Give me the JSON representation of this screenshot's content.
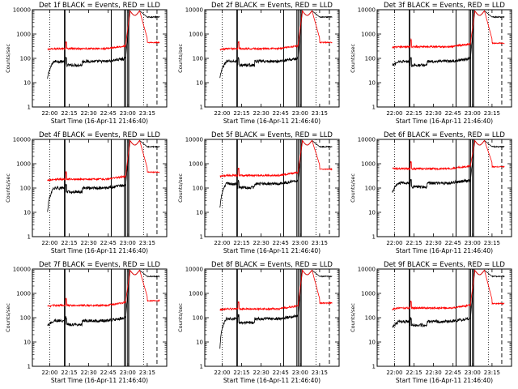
{
  "chart_data": [
    {
      "type": "line",
      "title": "Det 1f BLACK = Events, RED = LLD",
      "xlabel": "Start Time (16-Apr-11 21:46:40)",
      "ylabel": "Counts/sec",
      "yscale": "log",
      "ylim": [
        1,
        10000
      ],
      "x_ticks": [
        "22:00",
        "22:15",
        "22:30",
        "22:45",
        "23:00",
        "23:15"
      ],
      "y_ticks": [
        "1",
        "10",
        "100",
        "1000",
        "10000"
      ],
      "series": [
        {
          "color": "#000000",
          "kind": "events",
          "base": 75,
          "start": 14,
          "end": 6000
        },
        {
          "color": "#ff0000",
          "kind": "lld",
          "base": 250,
          "start": 230,
          "end": 450
        }
      ]
    },
    {
      "type": "line",
      "title": "Det 2f BLACK = Events, RED = LLD",
      "xlabel": "Start Time (16-Apr-11 21:46:40)",
      "ylabel": "Counts/sec",
      "yscale": "log",
      "ylim": [
        1,
        10000
      ],
      "x_ticks": [
        "22:00",
        "22:15",
        "22:30",
        "22:45",
        "23:00",
        "23:15"
      ],
      "y_ticks": [
        "1",
        "10",
        "100",
        "1000",
        "10000"
      ],
      "series": [
        {
          "color": "#000000",
          "kind": "events",
          "base": 75,
          "start": 15,
          "end": 6000
        },
        {
          "color": "#ff0000",
          "kind": "lld",
          "base": 250,
          "start": 230,
          "end": 450
        }
      ]
    },
    {
      "type": "line",
      "title": "Det 3f BLACK = Events, RED = LLD",
      "xlabel": "Start Time (16-Apr-11 21:46:40)",
      "ylabel": "Counts/sec",
      "yscale": "log",
      "ylim": [
        1,
        10000
      ],
      "x_ticks": [
        "22:00",
        "22:15",
        "22:30",
        "22:45",
        "23:00",
        "23:15"
      ],
      "y_ticks": [
        "1",
        "10",
        "100",
        "1000",
        "10000"
      ],
      "series": [
        {
          "color": "#000000",
          "kind": "events",
          "base": 75,
          "start": 50,
          "end": 6000
        },
        {
          "color": "#ff0000",
          "kind": "lld",
          "base": 300,
          "start": 280,
          "end": 420
        }
      ]
    },
    {
      "type": "line",
      "title": "Det 4f BLACK = Events, RED = LLD",
      "xlabel": "Start Time (16-Apr-11 21:46:40)",
      "ylabel": "Counts/sec",
      "yscale": "log",
      "ylim": [
        1,
        10000
      ],
      "x_ticks": [
        "22:00",
        "22:15",
        "22:30",
        "22:45",
        "23:00",
        "23:15"
      ],
      "y_ticks": [
        "1",
        "10",
        "100",
        "1000",
        "10000"
      ],
      "series": [
        {
          "color": "#000000",
          "kind": "events",
          "base": 100,
          "start": 10,
          "end": 6000
        },
        {
          "color": "#ff0000",
          "kind": "lld",
          "base": 230,
          "start": 210,
          "end": 450
        }
      ]
    },
    {
      "type": "line",
      "title": "Det 5f BLACK = Events, RED = LLD",
      "xlabel": "Start Time (16-Apr-11 21:46:40)",
      "ylabel": "Counts/sec",
      "yscale": "log",
      "ylim": [
        1,
        10000
      ],
      "x_ticks": [
        "22:00",
        "22:15",
        "22:30",
        "22:45",
        "23:00",
        "23:15"
      ],
      "y_ticks": [
        "1",
        "10",
        "100",
        "1000",
        "10000"
      ],
      "series": [
        {
          "color": "#000000",
          "kind": "events",
          "base": 150,
          "start": 15,
          "end": 6000
        },
        {
          "color": "#ff0000",
          "kind": "lld",
          "base": 330,
          "start": 300,
          "end": 600
        }
      ]
    },
    {
      "type": "line",
      "title": "Det 6f BLACK = Events, RED = LLD",
      "xlabel": "Start Time (16-Apr-11 21:46:40)",
      "ylabel": "Counts/sec",
      "yscale": "log",
      "ylim": [
        1,
        10000
      ],
      "x_ticks": [
        "22:00",
        "22:15",
        "22:30",
        "22:45",
        "23:00",
        "23:15"
      ],
      "y_ticks": [
        "1",
        "10",
        "100",
        "1000",
        "10000"
      ],
      "series": [
        {
          "color": "#000000",
          "kind": "events",
          "base": 160,
          "start": 70,
          "end": 6000
        },
        {
          "color": "#ff0000",
          "kind": "lld",
          "base": 620,
          "start": 650,
          "end": 750
        }
      ]
    },
    {
      "type": "line",
      "title": "Det 7f BLACK = Events, RED = LLD",
      "xlabel": "Start Time (16-Apr-11 21:46:40)",
      "ylabel": "Counts/sec",
      "yscale": "log",
      "ylim": [
        1,
        10000
      ],
      "x_ticks": [
        "22:00",
        "22:15",
        "22:30",
        "22:45",
        "23:00",
        "23:15"
      ],
      "y_ticks": [
        "1",
        "10",
        "100",
        "1000",
        "10000"
      ],
      "series": [
        {
          "color": "#000000",
          "kind": "events",
          "base": 75,
          "start": 45,
          "end": 6000
        },
        {
          "color": "#ff0000",
          "kind": "lld",
          "base": 320,
          "start": 300,
          "end": 500
        }
      ]
    },
    {
      "type": "line",
      "title": "Det 8f BLACK = Events, RED = LLD",
      "xlabel": "Start Time (16-Apr-11 21:46:40)",
      "ylabel": "Counts/sec",
      "yscale": "log",
      "ylim": [
        1,
        10000
      ],
      "x_ticks": [
        "22:00",
        "22:15",
        "22:30",
        "22:45",
        "23:00",
        "23:15"
      ],
      "y_ticks": [
        "1",
        "10",
        "100",
        "1000",
        "10000"
      ],
      "series": [
        {
          "color": "#000000",
          "kind": "events",
          "base": 90,
          "start": 5,
          "end": 6000
        },
        {
          "color": "#ff0000",
          "kind": "lld",
          "base": 230,
          "start": 210,
          "end": 400
        }
      ]
    },
    {
      "type": "line",
      "title": "Det 9f BLACK = Events, RED = LLD",
      "xlabel": "Start Time (16-Apr-11 21:46:40)",
      "ylabel": "Counts/sec",
      "yscale": "log",
      "ylim": [
        1,
        10000
      ],
      "x_ticks": [
        "22:00",
        "22:15",
        "22:30",
        "22:45",
        "23:00",
        "23:15"
      ],
      "y_ticks": [
        "1",
        "10",
        "100",
        "1000",
        "10000"
      ],
      "series": [
        {
          "color": "#000000",
          "kind": "events",
          "base": 70,
          "start": 40,
          "end": 6000
        },
        {
          "color": "#ff0000",
          "kind": "lld",
          "base": 250,
          "start": 220,
          "end": 380
        }
      ]
    }
  ]
}
